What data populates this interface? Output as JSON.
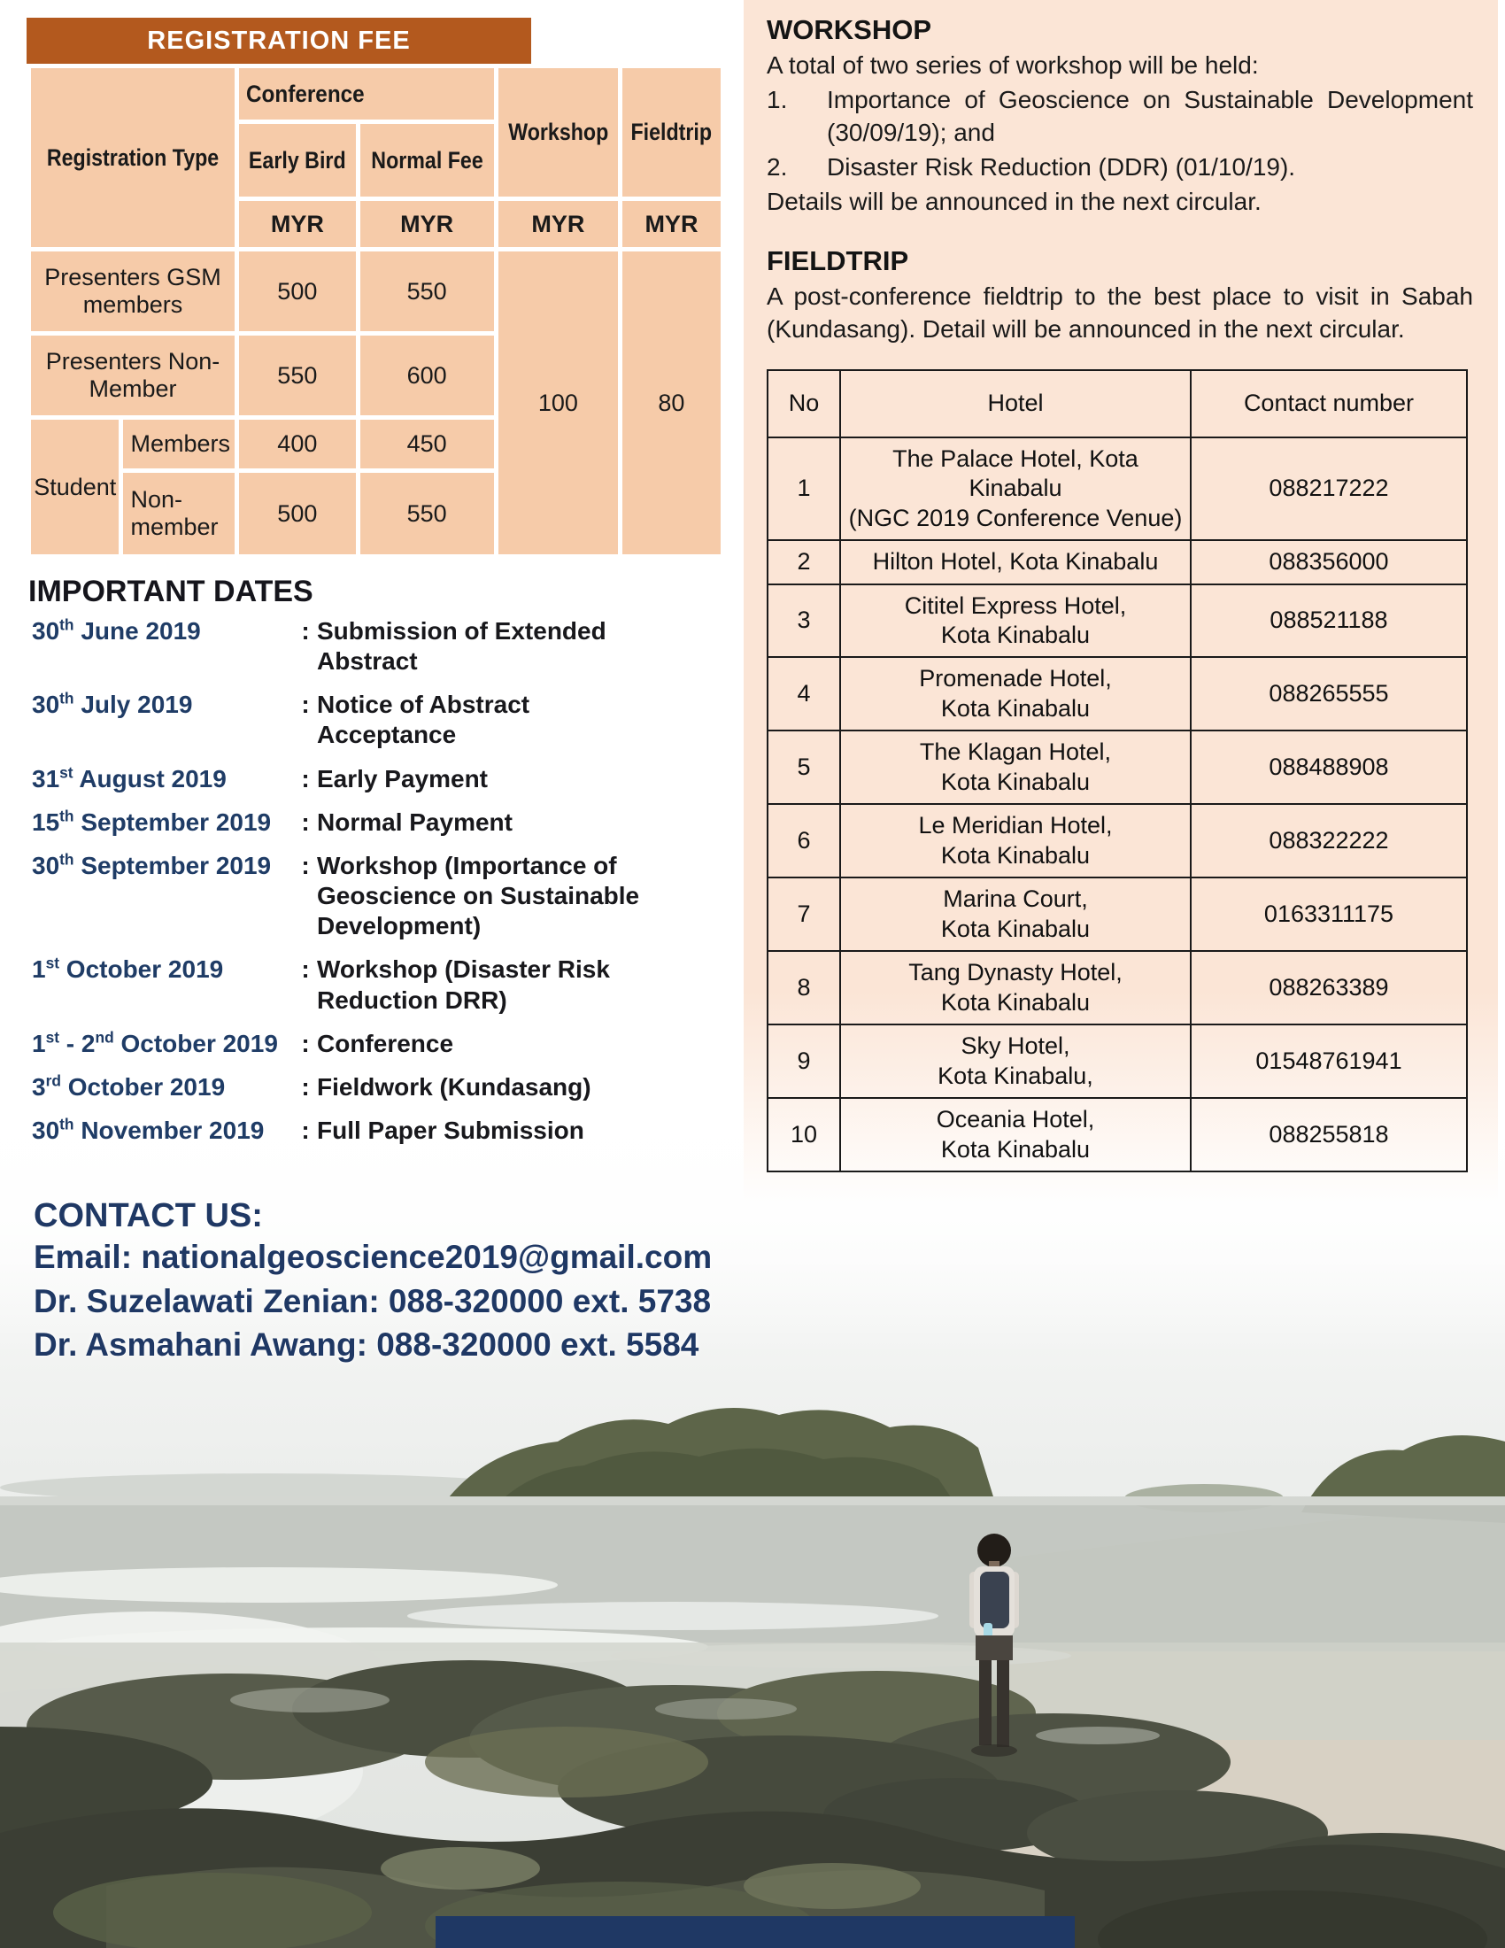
{
  "colors": {
    "header_brown": "#b3591e",
    "cell_peach": "#f6cba9",
    "panel_peach": "#fbe5d6",
    "navy": "#1f3864",
    "table_border": "#1a1a1a",
    "footer_navy": "#1f3864"
  },
  "fee_table": {
    "title": "REGISTRATION FEE",
    "header": {
      "registration_type": "Registration Type",
      "conference": "Conference",
      "early_bird": "Early Bird",
      "normal_fee": "Normal Fee",
      "workshop": "Workshop",
      "fieldtrip": "Fieldtrip",
      "currency": "MYR"
    },
    "rows": [
      {
        "type": "Presenters GSM members",
        "early": "500",
        "normal": "550"
      },
      {
        "type": "Presenters Non-Member",
        "early": "550",
        "normal": "600"
      },
      {
        "group": "Student",
        "type": "Members",
        "early": "400",
        "normal": "450"
      },
      {
        "group": "Student",
        "type": "Non-member",
        "early": "500",
        "normal": "550"
      }
    ],
    "workshop_fee": "100",
    "fieldtrip_fee": "80"
  },
  "important_dates": {
    "title": "IMPORTANT DATES",
    "separator": ":",
    "items": [
      {
        "date": [
          {
            "t": "30"
          },
          {
            "sup": "th"
          },
          {
            "t": " June 2019"
          }
        ],
        "desc": "Submission of Extended Abstract"
      },
      {
        "date": [
          {
            "t": "30"
          },
          {
            "sup": "th"
          },
          {
            "t": " July 2019"
          }
        ],
        "desc": "Notice of Abstract Acceptance"
      },
      {
        "date": [
          {
            "t": "31"
          },
          {
            "sup": "st"
          },
          {
            "t": " August 2019"
          }
        ],
        "desc": "Early Payment"
      },
      {
        "date": [
          {
            "t": "15"
          },
          {
            "sup": "th"
          },
          {
            "t": " September 2019"
          }
        ],
        "desc": "Normal Payment"
      },
      {
        "date": [
          {
            "t": "30"
          },
          {
            "sup": "th"
          },
          {
            "t": " September 2019"
          }
        ],
        "desc": "Workshop (Importance of Geoscience on Sustainable Development)"
      },
      {
        "date": [
          {
            "t": "1"
          },
          {
            "sup": "st"
          },
          {
            "t": " October 2019"
          }
        ],
        "desc": "Workshop (Disaster Risk Reduction DRR)"
      },
      {
        "date": [
          {
            "t": "1"
          },
          {
            "sup": "st"
          },
          {
            "t": " - "
          },
          {
            "t": "2"
          },
          {
            "sup": "nd"
          },
          {
            "t": " October 2019"
          }
        ],
        "desc": "Conference"
      },
      {
        "date": [
          {
            "t": "3"
          },
          {
            "sup": "rd"
          },
          {
            "t": " October 2019"
          }
        ],
        "desc": "Fieldwork (Kundasang)"
      },
      {
        "date": [
          {
            "t": "30"
          },
          {
            "sup": "th"
          },
          {
            "t": " November 2019"
          }
        ],
        "desc": "Full Paper Submission"
      }
    ]
  },
  "contact": {
    "title": "CONTACT US:",
    "lines": [
      "Email: nationalgeoscience2019@gmail.com",
      "Dr. Suzelawati Zenian: 088-320000 ext. 5738",
      "Dr. Asmahani Awang: 088-320000 ext. 5584"
    ]
  },
  "workshop_section": {
    "title": "WORKSHOP",
    "intro": "A total of two series of workshop will be held:",
    "items": [
      {
        "num": "1.",
        "text": "Importance of Geoscience on Sustainable Development (30/09/19); and"
      },
      {
        "num": "2.",
        "text": "Disaster Risk Reduction (DDR) (01/10/19)."
      }
    ],
    "outro": "Details will be announced in the next circular."
  },
  "fieldtrip_section": {
    "title": "FIELDTRIP",
    "text": "A post-conference fieldtrip to the best place to visit in Sabah (Kundasang). Detail will be announced in the next circular."
  },
  "hotels_table": {
    "headers": {
      "no": "No",
      "hotel": "Hotel",
      "contact": "Contact number"
    },
    "rows": [
      {
        "no": "1",
        "hotel": [
          "The Palace Hotel, Kota Kinabalu",
          "(NGC 2019 Conference Venue)"
        ],
        "contact": "088217222"
      },
      {
        "no": "2",
        "hotel": [
          "Hilton Hotel, Kota Kinabalu"
        ],
        "contact": "088356000"
      },
      {
        "no": "3",
        "hotel": [
          "Cititel Express Hotel,",
          "Kota Kinabalu"
        ],
        "contact": "088521188"
      },
      {
        "no": "4",
        "hotel": [
          "Promenade Hotel,",
          "Kota Kinabalu"
        ],
        "contact": "088265555"
      },
      {
        "no": "5",
        "hotel": [
          "The Klagan Hotel,",
          "Kota Kinabalu"
        ],
        "contact": "088488908"
      },
      {
        "no": "6",
        "hotel": [
          "Le Meridian Hotel,",
          "Kota Kinabalu"
        ],
        "contact": "088322222"
      },
      {
        "no": "7",
        "hotel": [
          "Marina Court,",
          "Kota Kinabalu"
        ],
        "contact": "0163311175"
      },
      {
        "no": "8",
        "hotel": [
          "Tang Dynasty Hotel,",
          "Kota Kinabalu"
        ],
        "contact": "088263389"
      },
      {
        "no": "9",
        "hotel": [
          "Sky Hotel,",
          "Kota Kinabalu,"
        ],
        "contact": "01548761941"
      },
      {
        "no": "10",
        "hotel": [
          "Oceania Hotel,",
          "Kota Kinabalu"
        ],
        "contact": "088255818"
      }
    ]
  }
}
